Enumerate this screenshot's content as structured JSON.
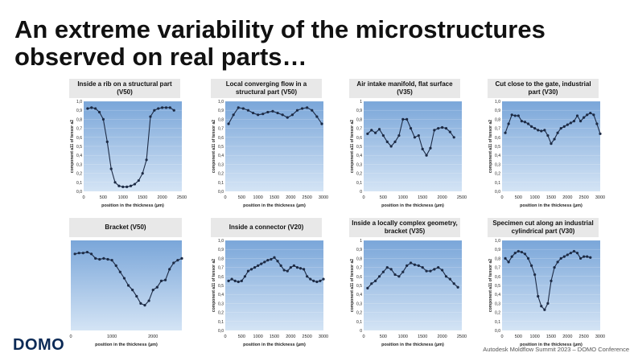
{
  "slide": {
    "title": "An extreme variability of the microstructures observed on real parts…",
    "logo": "DOMO",
    "footer": "Autodesk Moldflow Summit 2023 – DOMO Conference"
  },
  "colors": {
    "plot_top": "#7aa6d9",
    "plot_bottom": "#d4e4f5",
    "line": "#1c2a44",
    "caption_bg": "#e8e8e8"
  },
  "chart_data": [
    {
      "type": "line",
      "title": "Inside a rib on a structural part (V50)",
      "xlabel": "position in the thickness (µm)",
      "ylabel": "component a11 of tensor a2",
      "xlim": [
        0,
        2500
      ],
      "ylim": [
        0,
        1.0
      ],
      "xticks": [
        "0",
        "500",
        "1000",
        "1500",
        "2000",
        "2500"
      ],
      "yticks": [
        "0,0",
        "0,1",
        "0,2",
        "0,3",
        "0,4",
        "0,5",
        "0,6",
        "0,7",
        "0,8",
        "0,9",
        "1,0"
      ],
      "x": [
        100,
        200,
        300,
        400,
        500,
        600,
        700,
        800,
        900,
        1000,
        1100,
        1200,
        1300,
        1400,
        1500,
        1600,
        1700,
        1800,
        1900,
        2000,
        2100,
        2200,
        2300
      ],
      "y": [
        0.92,
        0.93,
        0.92,
        0.88,
        0.8,
        0.55,
        0.25,
        0.1,
        0.06,
        0.05,
        0.05,
        0.06,
        0.08,
        0.12,
        0.2,
        0.35,
        0.83,
        0.9,
        0.92,
        0.93,
        0.93,
        0.93,
        0.9
      ]
    },
    {
      "type": "line",
      "title": "Local converging flow in a structural part (V50)",
      "xlabel": "position in the thickness (µm)",
      "ylabel": "component a11 of tensor a2",
      "xlim": [
        0,
        3000
      ],
      "ylim": [
        0,
        1.0
      ],
      "xticks": [
        "0",
        "500",
        "1000",
        "1500",
        "2000",
        "2500",
        "3000"
      ],
      "yticks": [
        "0,0",
        "0,1",
        "0,2",
        "0,3",
        "0,4",
        "0,5",
        "0,6",
        "0,7",
        "0,8",
        "0,9",
        "1,0"
      ],
      "x": [
        100,
        250,
        400,
        550,
        700,
        850,
        1000,
        1150,
        1300,
        1450,
        1600,
        1750,
        1900,
        2050,
        2200,
        2350,
        2500,
        2650,
        2800,
        2950
      ],
      "y": [
        0.75,
        0.85,
        0.93,
        0.92,
        0.9,
        0.87,
        0.85,
        0.86,
        0.88,
        0.89,
        0.87,
        0.85,
        0.82,
        0.85,
        0.9,
        0.92,
        0.93,
        0.9,
        0.83,
        0.75
      ]
    },
    {
      "type": "line",
      "title": "Air intake manifold, flat surface (V35)",
      "xlabel": "position in the thickness (µm)",
      "ylabel": "component a11 of tensor a2",
      "xlim": [
        0,
        2500
      ],
      "ylim": [
        0,
        1.0
      ],
      "xticks": [
        "0",
        "500",
        "1000",
        "1500",
        "2000",
        "2500"
      ],
      "yticks": [
        "0",
        "0,1",
        "0,2",
        "0,3",
        "0,4",
        "0,5",
        "0,6",
        "0,7",
        "0,8",
        "0,9",
        "1"
      ],
      "x": [
        100,
        200,
        300,
        400,
        500,
        600,
        700,
        800,
        900,
        1000,
        1100,
        1200,
        1300,
        1400,
        1500,
        1600,
        1700,
        1800,
        1900,
        2000,
        2100,
        2200,
        2300
      ],
      "y": [
        0.64,
        0.68,
        0.65,
        0.69,
        0.62,
        0.55,
        0.5,
        0.55,
        0.62,
        0.8,
        0.8,
        0.7,
        0.6,
        0.62,
        0.47,
        0.4,
        0.48,
        0.68,
        0.7,
        0.71,
        0.7,
        0.66,
        0.6
      ]
    },
    {
      "type": "line",
      "title": "Cut close to the gate, industrial part (V30)",
      "xlabel": "position in the thickness (µm)",
      "ylabel": "component a11 of tensor a2",
      "xlim": [
        0,
        3000
      ],
      "ylim": [
        0,
        1.0
      ],
      "xticks": [
        "0",
        "500",
        "1000",
        "1500",
        "2000",
        "2500",
        "3000"
      ],
      "yticks": [
        "0,0",
        "0,1",
        "0,2",
        "0,3",
        "0,4",
        "0,5",
        "0,6",
        "0,7",
        "0,8",
        "0,9",
        "1,0"
      ],
      "x": [
        100,
        200,
        300,
        400,
        500,
        600,
        700,
        800,
        900,
        1000,
        1100,
        1200,
        1300,
        1400,
        1500,
        1600,
        1700,
        1800,
        1900,
        2000,
        2100,
        2200,
        2300,
        2400,
        2500,
        2600,
        2700,
        2800,
        2900,
        3000
      ],
      "y": [
        0.65,
        0.75,
        0.85,
        0.84,
        0.84,
        0.78,
        0.77,
        0.75,
        0.72,
        0.7,
        0.68,
        0.67,
        0.68,
        0.62,
        0.53,
        0.58,
        0.65,
        0.7,
        0.72,
        0.74,
        0.76,
        0.78,
        0.84,
        0.78,
        0.82,
        0.85,
        0.87,
        0.85,
        0.75,
        0.64
      ]
    },
    {
      "type": "line",
      "title": "Bracket (V50)",
      "xlabel": "position in the thickness (µm)",
      "ylabel": "",
      "xlim": [
        0,
        2700
      ],
      "ylim": [
        0,
        1.0
      ],
      "xticks": [
        "0",
        "1000",
        "2000"
      ],
      "yticks": [],
      "x": [
        100,
        200,
        300,
        400,
        500,
        600,
        700,
        800,
        900,
        1000,
        1100,
        1200,
        1300,
        1400,
        1500,
        1600,
        1700,
        1800,
        1900,
        2000,
        2100,
        2200,
        2300,
        2400,
        2500,
        2600,
        2700
      ],
      "y": [
        0.85,
        0.86,
        0.86,
        0.87,
        0.85,
        0.8,
        0.79,
        0.8,
        0.79,
        0.78,
        0.72,
        0.65,
        0.58,
        0.5,
        0.45,
        0.38,
        0.3,
        0.28,
        0.33,
        0.45,
        0.48,
        0.55,
        0.56,
        0.68,
        0.75,
        0.78,
        0.8
      ]
    },
    {
      "type": "line",
      "title": "Inside a connector (V20)",
      "xlabel": "position in the thickness (µm)",
      "ylabel": "component a11 of tensor a2",
      "xlim": [
        0,
        3000
      ],
      "ylim": [
        0,
        1.0
      ],
      "xticks": [
        "0",
        "500",
        "1000",
        "1500",
        "2000",
        "2500",
        "3000"
      ],
      "yticks": [
        "0,0",
        "0,1",
        "0,2",
        "0,3",
        "0,4",
        "0,5",
        "0,6",
        "0,7",
        "0,8",
        "0,9",
        "1,0"
      ],
      "x": [
        100,
        200,
        300,
        400,
        500,
        600,
        700,
        800,
        900,
        1000,
        1100,
        1200,
        1300,
        1400,
        1500,
        1600,
        1700,
        1800,
        1900,
        2000,
        2100,
        2200,
        2300,
        2400,
        2500,
        2600,
        2700,
        2800,
        2900,
        3000
      ],
      "y": [
        0.55,
        0.57,
        0.55,
        0.54,
        0.55,
        0.6,
        0.66,
        0.68,
        0.7,
        0.72,
        0.74,
        0.76,
        0.78,
        0.79,
        0.81,
        0.77,
        0.72,
        0.67,
        0.66,
        0.7,
        0.72,
        0.7,
        0.69,
        0.68,
        0.6,
        0.57,
        0.55,
        0.54,
        0.55,
        0.57
      ]
    },
    {
      "type": "line",
      "title": "Inside a locally complex geometry, bracket (V35)",
      "xlabel": "position in the thickness (µm)",
      "ylabel": "component a11 of tensor a2",
      "xlim": [
        0,
        2500
      ],
      "ylim": [
        0,
        1.0
      ],
      "xticks": [
        "0",
        "500",
        "1000",
        "1500",
        "2000",
        "2500"
      ],
      "yticks": [
        "0",
        "0,1",
        "0,2",
        "0,3",
        "0,4",
        "0,5",
        "0,6",
        "0,7",
        "0,8",
        "0,9",
        "1"
      ],
      "x": [
        100,
        200,
        300,
        400,
        500,
        600,
        700,
        800,
        900,
        1000,
        1100,
        1200,
        1300,
        1400,
        1500,
        1600,
        1700,
        1800,
        1900,
        2000,
        2100,
        2200,
        2300,
        2400
      ],
      "y": [
        0.47,
        0.52,
        0.55,
        0.6,
        0.65,
        0.7,
        0.68,
        0.62,
        0.6,
        0.65,
        0.72,
        0.75,
        0.73,
        0.72,
        0.7,
        0.66,
        0.66,
        0.68,
        0.7,
        0.67,
        0.6,
        0.57,
        0.52,
        0.48
      ]
    },
    {
      "type": "line",
      "title": "Specimen cut along an industrial cylindrical part (V30)",
      "xlabel": "position in the thickness (µm)",
      "ylabel": "component a11 of tensor a2",
      "xlim": [
        0,
        3000
      ],
      "ylim": [
        0,
        1.0
      ],
      "xticks": [
        "0",
        "500",
        "1000",
        "1500",
        "2000",
        "2500",
        "3000"
      ],
      "yticks": [
        "0,0",
        "0,1",
        "0,2",
        "0,3",
        "0,4",
        "0,5",
        "0,6",
        "0,7",
        "0,8",
        "0,9",
        "1,0"
      ],
      "x": [
        100,
        200,
        300,
        400,
        500,
        600,
        700,
        800,
        900,
        1000,
        1100,
        1200,
        1300,
        1400,
        1500,
        1600,
        1700,
        1800,
        1900,
        2000,
        2100,
        2200,
        2300,
        2400,
        2500,
        2600,
        2700
      ],
      "y": [
        0.8,
        0.76,
        0.82,
        0.86,
        0.88,
        0.87,
        0.85,
        0.8,
        0.72,
        0.62,
        0.38,
        0.27,
        0.23,
        0.3,
        0.55,
        0.7,
        0.76,
        0.8,
        0.82,
        0.84,
        0.86,
        0.88,
        0.86,
        0.8,
        0.82,
        0.82,
        0.81
      ]
    }
  ]
}
